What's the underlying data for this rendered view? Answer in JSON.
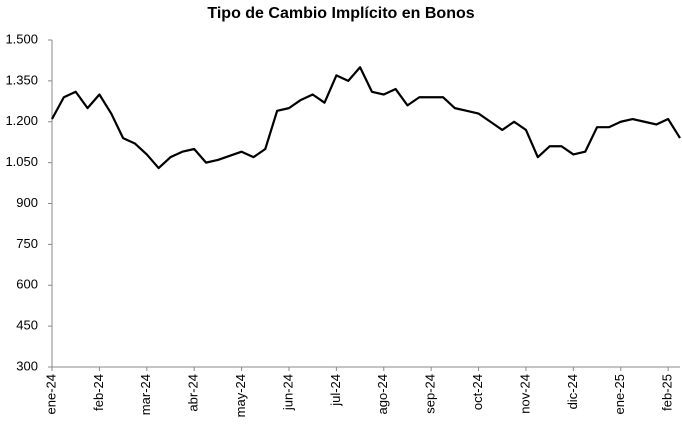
{
  "chart_data": {
    "type": "line",
    "title": "Tipo de Cambio Implícito en Bonos",
    "categories": [
      "ene-24",
      null,
      null,
      null,
      "feb-24",
      null,
      null,
      null,
      "mar-24",
      null,
      null,
      null,
      "abr-24",
      null,
      null,
      null,
      "may-24",
      null,
      null,
      null,
      "jun-24",
      null,
      null,
      null,
      "jul-24",
      null,
      null,
      null,
      "ago-24",
      null,
      null,
      null,
      "sep-24",
      null,
      null,
      null,
      "oct-24",
      null,
      null,
      null,
      "nov-24",
      null,
      null,
      null,
      "dic-24",
      null,
      null,
      null,
      "ene-25",
      null,
      null,
      null,
      "feb-25",
      null
    ],
    "values": [
      1210,
      1290,
      1310,
      1250,
      1300,
      1230,
      1140,
      1120,
      1080,
      1030,
      1070,
      1090,
      1100,
      1050,
      1060,
      1075,
      1090,
      1070,
      1100,
      1240,
      1250,
      1280,
      1300,
      1270,
      1370,
      1350,
      1400,
      1310,
      1300,
      1320,
      1260,
      1290,
      1290,
      1290,
      1250,
      1240,
      1230,
      1200,
      1170,
      1200,
      1170,
      1070,
      1110,
      1110,
      1080,
      1090,
      1180,
      1180,
      1200,
      1210,
      1200,
      1190,
      1210,
      1140
    ],
    "color": "#000000",
    "ylim": [
      300,
      1500
    ],
    "yticks": [
      300,
      450,
      600,
      750,
      900,
      {
        "value": 1050,
        "label": "1.050"
      },
      {
        "value": 1200,
        "label": "1.200"
      },
      {
        "value": 1350,
        "label": "1.350"
      },
      {
        "value": 1500,
        "label": "1.500"
      }
    ],
    "grid": false
  }
}
